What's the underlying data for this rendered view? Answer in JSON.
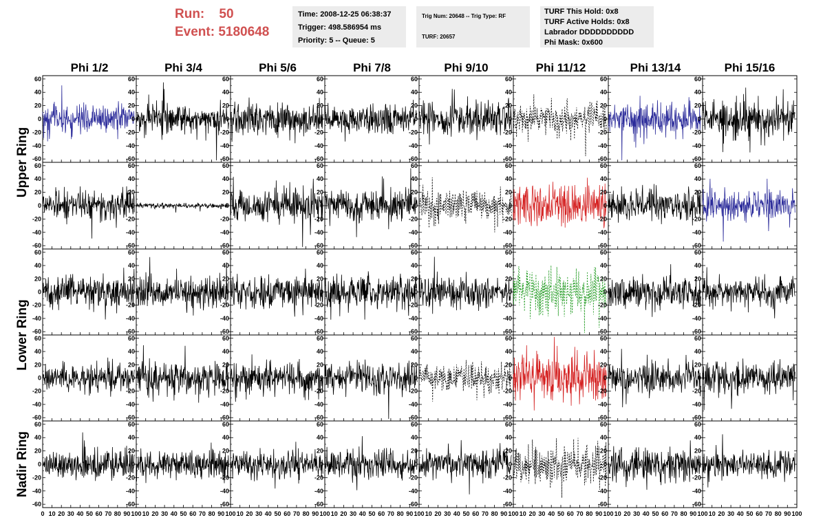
{
  "header": {
    "run_label": "Run:",
    "run_value": "50",
    "event_label": "Event:",
    "event_value": "5180648"
  },
  "time_box": {
    "time": "Time: 2008-12-25 06:38:37",
    "trigger": "Trigger: 498.586954 ms",
    "priority": "Priority: 5 -- Queue: 5"
  },
  "trig_box": {
    "trig": "Trig Num: 20648 -- Trig Type: RF",
    "turf": "TURF: 20657"
  },
  "turf_box": {
    "hold": "TURF This Hold: 0x8",
    "active": "TURF Active Holds: 0x8",
    "labrador": "Labrador DDDDDDDDDD",
    "phimask": "Phi Mask: 0x600"
  },
  "colors": {
    "header_text": "#d05050",
    "box_bg": "#ececec",
    "trace_default": "#000000",
    "trace_blue": "#2b2b9a",
    "trace_red": "#d42020",
    "trace_green": "#1f9a1f"
  },
  "chart_data": {
    "type": "line",
    "columns": [
      "Phi 1/2",
      "Phi 3/4",
      "Phi 5/6",
      "Phi 7/8",
      "Phi 9/10",
      "Phi 11/12",
      "Phi 13/14",
      "Phi 15/16"
    ],
    "row_labels": [
      "Upper Ring",
      "Lower Ring",
      "Nadir Ring"
    ],
    "xlim": [
      0,
      100
    ],
    "ylim": [
      -65,
      65
    ],
    "x_ticks": [
      0,
      10,
      20,
      30,
      40,
      50,
      60,
      70,
      80,
      90,
      100
    ],
    "y_ticks": [
      -60,
      -40,
      -20,
      0,
      20,
      40,
      60
    ],
    "waveform_samples": 260,
    "waveform_x_range": [
      0,
      98
    ],
    "panels": [
      {
        "row": 0,
        "col": 0,
        "amp": 11,
        "style": "solid",
        "color": "blue"
      },
      {
        "row": 0,
        "col": 1,
        "amp": 10,
        "style": "solid",
        "color": "default"
      },
      {
        "row": 0,
        "col": 2,
        "amp": 12,
        "style": "solid",
        "color": "default"
      },
      {
        "row": 0,
        "col": 3,
        "amp": 11,
        "style": "solid",
        "color": "default"
      },
      {
        "row": 0,
        "col": 4,
        "amp": 13,
        "style": "solid",
        "color": "default"
      },
      {
        "row": 0,
        "col": 5,
        "amp": 11,
        "style": "dotted",
        "color": "default"
      },
      {
        "row": 0,
        "col": 6,
        "amp": 12,
        "style": "solid",
        "color": "blue"
      },
      {
        "row": 0,
        "col": 7,
        "amp": 13,
        "style": "solid",
        "color": "default"
      },
      {
        "row": 1,
        "col": 0,
        "amp": 12,
        "style": "solid",
        "color": "default"
      },
      {
        "row": 1,
        "col": 1,
        "amp": 2,
        "style": "solid",
        "color": "default"
      },
      {
        "row": 1,
        "col": 2,
        "amp": 12,
        "style": "solid",
        "color": "default"
      },
      {
        "row": 1,
        "col": 3,
        "amp": 12,
        "style": "solid",
        "color": "default"
      },
      {
        "row": 1,
        "col": 4,
        "amp": 12,
        "style": "dotted",
        "color": "default"
      },
      {
        "row": 1,
        "col": 5,
        "amp": 17,
        "style": "solid",
        "color": "red"
      },
      {
        "row": 1,
        "col": 6,
        "amp": 11,
        "style": "solid",
        "color": "default"
      },
      {
        "row": 1,
        "col": 7,
        "amp": 12,
        "style": "solid",
        "color": "blue"
      },
      {
        "row": 2,
        "col": 0,
        "amp": 12,
        "style": "solid",
        "color": "default"
      },
      {
        "row": 2,
        "col": 1,
        "amp": 12,
        "style": "solid",
        "color": "default"
      },
      {
        "row": 2,
        "col": 2,
        "amp": 12,
        "style": "solid",
        "color": "default"
      },
      {
        "row": 2,
        "col": 3,
        "amp": 12,
        "style": "solid",
        "color": "default"
      },
      {
        "row": 2,
        "col": 4,
        "amp": 12,
        "style": "solid",
        "color": "default"
      },
      {
        "row": 2,
        "col": 5,
        "amp": 16,
        "style": "dotted",
        "color": "green"
      },
      {
        "row": 2,
        "col": 6,
        "amp": 12,
        "style": "solid",
        "color": "default"
      },
      {
        "row": 2,
        "col": 7,
        "amp": 10,
        "style": "solid",
        "color": "default"
      },
      {
        "row": 3,
        "col": 0,
        "amp": 10,
        "style": "solid",
        "color": "default"
      },
      {
        "row": 3,
        "col": 1,
        "amp": 13,
        "style": "solid",
        "color": "default"
      },
      {
        "row": 3,
        "col": 2,
        "amp": 11,
        "style": "solid",
        "color": "default"
      },
      {
        "row": 3,
        "col": 3,
        "amp": 12,
        "style": "solid",
        "color": "default"
      },
      {
        "row": 3,
        "col": 4,
        "amp": 10,
        "style": "dotted",
        "color": "default"
      },
      {
        "row": 3,
        "col": 5,
        "amp": 17,
        "style": "solid",
        "color": "red"
      },
      {
        "row": 3,
        "col": 6,
        "amp": 12,
        "style": "solid",
        "color": "default"
      },
      {
        "row": 3,
        "col": 7,
        "amp": 12,
        "style": "solid",
        "color": "default"
      },
      {
        "row": 4,
        "col": 0,
        "amp": 12,
        "style": "solid",
        "color": "default"
      },
      {
        "row": 4,
        "col": 1,
        "amp": 11,
        "style": "solid",
        "color": "default"
      },
      {
        "row": 4,
        "col": 2,
        "amp": 11,
        "style": "solid",
        "color": "default"
      },
      {
        "row": 4,
        "col": 3,
        "amp": 11,
        "style": "solid",
        "color": "default"
      },
      {
        "row": 4,
        "col": 4,
        "amp": 11,
        "style": "solid",
        "color": "default"
      },
      {
        "row": 4,
        "col": 5,
        "amp": 16,
        "style": "dotted",
        "color": "default"
      },
      {
        "row": 4,
        "col": 6,
        "amp": 13,
        "style": "solid",
        "color": "default"
      },
      {
        "row": 4,
        "col": 7,
        "amp": 10,
        "style": "solid",
        "color": "default"
      }
    ]
  }
}
